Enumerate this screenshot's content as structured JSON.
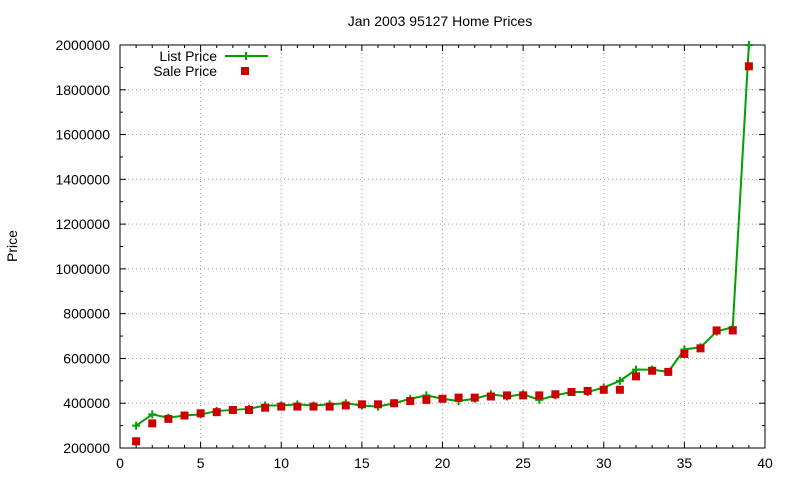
{
  "chart_data": {
    "type": "line",
    "title": "Jan 2003 95127 Home Prices",
    "xlabel": "",
    "ylabel": "Price",
    "xlim": [
      0,
      40
    ],
    "ylim": [
      200000,
      2000000
    ],
    "xticks": [
      0,
      5,
      10,
      15,
      20,
      25,
      30,
      35,
      40
    ],
    "yticks": [
      200000,
      400000,
      600000,
      800000,
      1000000,
      1200000,
      1400000,
      1600000,
      1800000,
      2000000
    ],
    "grid": true,
    "legend_position": "top-left",
    "colors": {
      "list": "#00a000",
      "sale": "#cc0000"
    },
    "series": [
      {
        "name": "List Price",
        "style": "linespoints",
        "x": [
          1,
          2,
          3,
          4,
          5,
          6,
          7,
          8,
          9,
          10,
          11,
          12,
          13,
          14,
          15,
          16,
          17,
          18,
          19,
          20,
          21,
          22,
          23,
          24,
          25,
          26,
          27,
          28,
          29,
          30,
          31,
          32,
          33,
          34,
          35,
          36,
          37,
          38,
          39
        ],
        "values": [
          300000,
          350000,
          335000,
          345000,
          350000,
          365000,
          370000,
          375000,
          390000,
          390000,
          395000,
          390000,
          395000,
          400000,
          390000,
          385000,
          400000,
          420000,
          435000,
          420000,
          410000,
          420000,
          440000,
          430000,
          440000,
          415000,
          435000,
          450000,
          450000,
          470000,
          500000,
          550000,
          550000,
          540000,
          640000,
          650000,
          720000,
          740000,
          2000000
        ]
      },
      {
        "name": "Sale Price",
        "style": "points",
        "x": [
          1,
          2,
          3,
          4,
          5,
          6,
          7,
          8,
          9,
          10,
          11,
          12,
          13,
          14,
          15,
          16,
          17,
          18,
          19,
          20,
          21,
          22,
          23,
          24,
          25,
          26,
          27,
          28,
          29,
          30,
          31,
          32,
          33,
          34,
          35,
          36,
          37,
          38,
          39
        ],
        "values": [
          230000,
          310000,
          330000,
          345000,
          355000,
          360000,
          370000,
          370000,
          380000,
          385000,
          385000,
          385000,
          385000,
          390000,
          395000,
          395000,
          400000,
          410000,
          415000,
          420000,
          425000,
          425000,
          430000,
          435000,
          435000,
          435000,
          440000,
          450000,
          455000,
          460000,
          460000,
          520000,
          545000,
          540000,
          620000,
          645000,
          725000,
          725000,
          1905000
        ]
      }
    ]
  }
}
